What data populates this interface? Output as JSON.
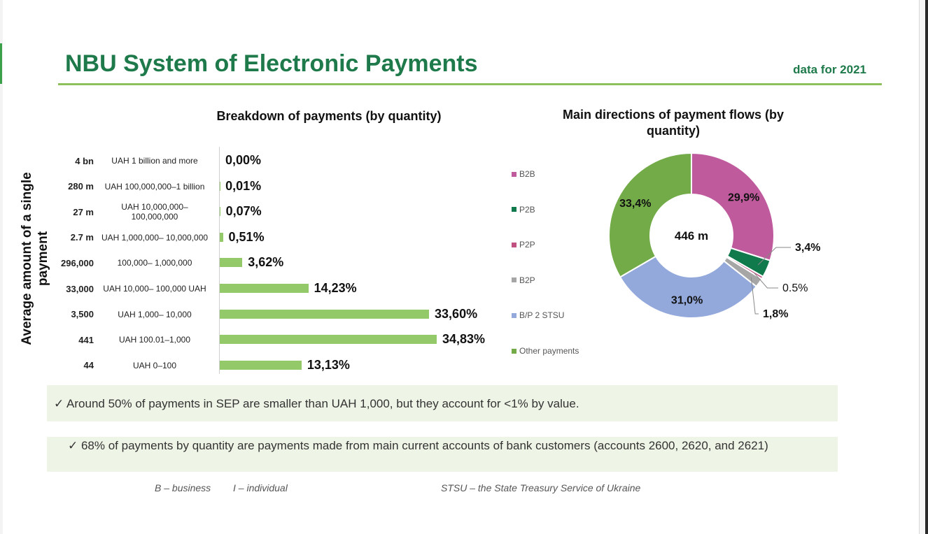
{
  "header": {
    "title": "NBU System of Electronic Payments",
    "year_label": "data for 2021"
  },
  "chart_data": [
    {
      "type": "bar",
      "title": "Breakdown of payments (by quantity)",
      "ylabel": "Average amount of a single payment",
      "categories": [
        "UAH 1 billion and more",
        "UAH 100,000,000–1 billion",
        "UAH 10,000,000– 100,000,000",
        "UAH 1,000,000– 10,000,000",
        "100,000– 1,000,000",
        "UAH 10,000– 100,000 UAH",
        "UAH 1,000– 10,000",
        "UAH 100.01–1,000",
        "UAH 0–100"
      ],
      "average_amounts": [
        "4 bn",
        "280 m",
        "27 m",
        "2.7 m",
        "296,000",
        "33,000",
        "3,500",
        "441",
        "44"
      ],
      "values": [
        0.0,
        0.01,
        0.07,
        0.51,
        3.62,
        14.23,
        33.6,
        34.83,
        13.13
      ],
      "value_labels": [
        "0,00%",
        "0,01%",
        "0,07%",
        "0,51%",
        "3,62%",
        "14,23%",
        "33,60%",
        "34,83%",
        "13,13%"
      ],
      "unit": "%",
      "color": "#94c96a"
    },
    {
      "type": "pie",
      "title": "Main directions of payment flows (by quantity)",
      "center_label": "446 m",
      "categories": [
        "B2B",
        "P2B",
        "P2P",
        "B2P",
        "B/P 2 STSU",
        "Other payments"
      ],
      "values": [
        29.9,
        3.4,
        0.5,
        1.8,
        31.0,
        33.4
      ],
      "value_labels": [
        "29,9%",
        "3,4%",
        "0.5%",
        "1,8%",
        "31,0%",
        "33,4%"
      ],
      "colors": [
        "#bf5a9d",
        "#117a4d",
        "#c0507f",
        "#a6a6a6",
        "#93a9dc",
        "#72ab48"
      ],
      "legend_position": "left"
    }
  ],
  "notes": [
    "✓ Around 50% of payments in SEP are smaller than UAH 1,000, but they account for <1% by value.",
    "✓ 68% of payments by quantity are payments made from main current accounts of bank customers (accounts 2600, 2620, and 2621)"
  ],
  "footnotes": [
    "B – business",
    "I – individual",
    "STSU – the State Treasury Service of Ukraine"
  ]
}
